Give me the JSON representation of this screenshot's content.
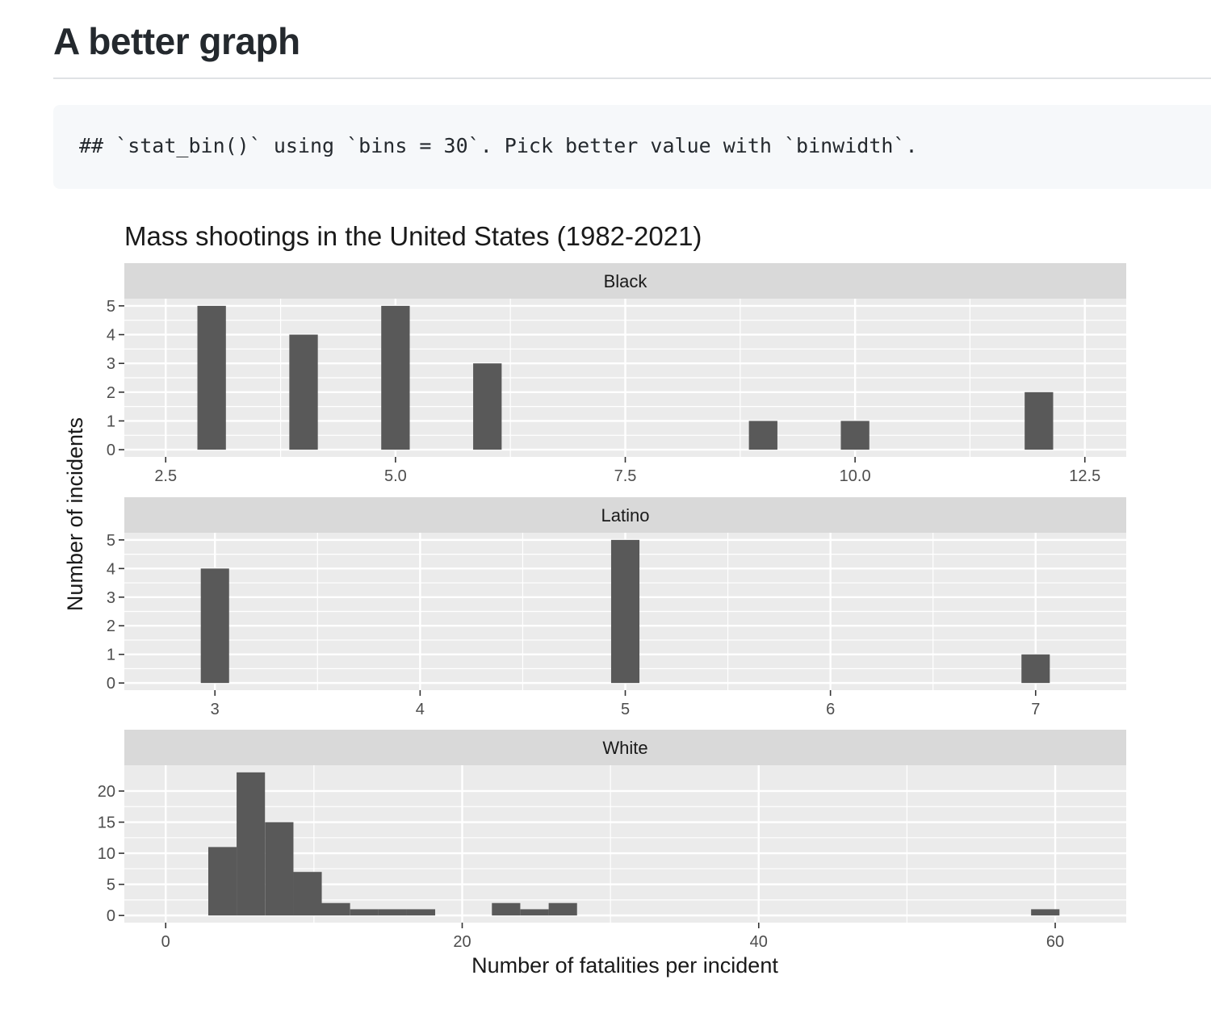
{
  "heading": "A better graph",
  "code_output": "## `stat_bin()` using `bins = 30`. Pick better value with `binwidth`.",
  "colors": {
    "bar": "#595959",
    "panel_bg": "#ebebeb",
    "strip_bg": "#d9d9d9",
    "grid": "#ffffff",
    "axis_text": "#4d4d4d",
    "title_text": "#1a1a1a"
  },
  "chart_data": {
    "type": "bar",
    "title": "Mass shootings in the United States (1982-2021)",
    "xlabel": "Number of fatalities per incident",
    "ylabel": "Number of incidents",
    "grid": true,
    "legend": "none",
    "facets": [
      {
        "name": "Black",
        "xlim": [
          2.5,
          12.5
        ],
        "ylim": [
          0,
          5
        ],
        "x_ticks": [
          2.5,
          5.0,
          7.5,
          10.0,
          12.5
        ],
        "x_tick_labels": [
          "2.5",
          "5.0",
          "7.5",
          "10.0",
          "12.5"
        ],
        "y_ticks": [
          0,
          1,
          2,
          3,
          4,
          5
        ],
        "y_tick_labels": [
          "0",
          "1",
          "2",
          "3",
          "4",
          "5"
        ],
        "bin_width": 0.31,
        "bins": [
          {
            "x": 3,
            "count": 5
          },
          {
            "x": 4,
            "count": 4
          },
          {
            "x": 5,
            "count": 5
          },
          {
            "x": 6,
            "count": 3
          },
          {
            "x": 9,
            "count": 1
          },
          {
            "x": 10,
            "count": 1
          },
          {
            "x": 12,
            "count": 2
          }
        ]
      },
      {
        "name": "Latino",
        "xlim": [
          2.76,
          7.24
        ],
        "ylim": [
          0,
          5
        ],
        "x_ticks": [
          3,
          4,
          5,
          6,
          7
        ],
        "x_tick_labels": [
          "3",
          "4",
          "5",
          "6",
          "7"
        ],
        "y_ticks": [
          0,
          1,
          2,
          3,
          4,
          5
        ],
        "y_tick_labels": [
          "0",
          "1",
          "2",
          "3",
          "4",
          "5"
        ],
        "bin_width": 0.138,
        "bins": [
          {
            "x": 3,
            "count": 4
          },
          {
            "x": 5,
            "count": 5
          },
          {
            "x": 7,
            "count": 1
          }
        ]
      },
      {
        "name": "White",
        "xlim": [
          0,
          62
        ],
        "ylim": [
          0,
          23
        ],
        "x_ticks": [
          0,
          20,
          40,
          60
        ],
        "x_tick_labels": [
          "0",
          "20",
          "40",
          "60"
        ],
        "y_ticks": [
          0,
          5,
          10,
          15,
          20
        ],
        "y_tick_labels": [
          "0",
          "5",
          "10",
          "15",
          "20"
        ],
        "bin_width": 1.914,
        "bins": [
          {
            "x": 3.83,
            "count": 11
          },
          {
            "x": 5.74,
            "count": 23
          },
          {
            "x": 7.66,
            "count": 15
          },
          {
            "x": 9.57,
            "count": 7
          },
          {
            "x": 11.48,
            "count": 2
          },
          {
            "x": 13.4,
            "count": 1
          },
          {
            "x": 15.31,
            "count": 1
          },
          {
            "x": 17.22,
            "count": 1
          },
          {
            "x": 22.96,
            "count": 2
          },
          {
            "x": 24.88,
            "count": 1
          },
          {
            "x": 26.79,
            "count": 2
          },
          {
            "x": 59.33,
            "count": 1
          }
        ]
      }
    ]
  }
}
